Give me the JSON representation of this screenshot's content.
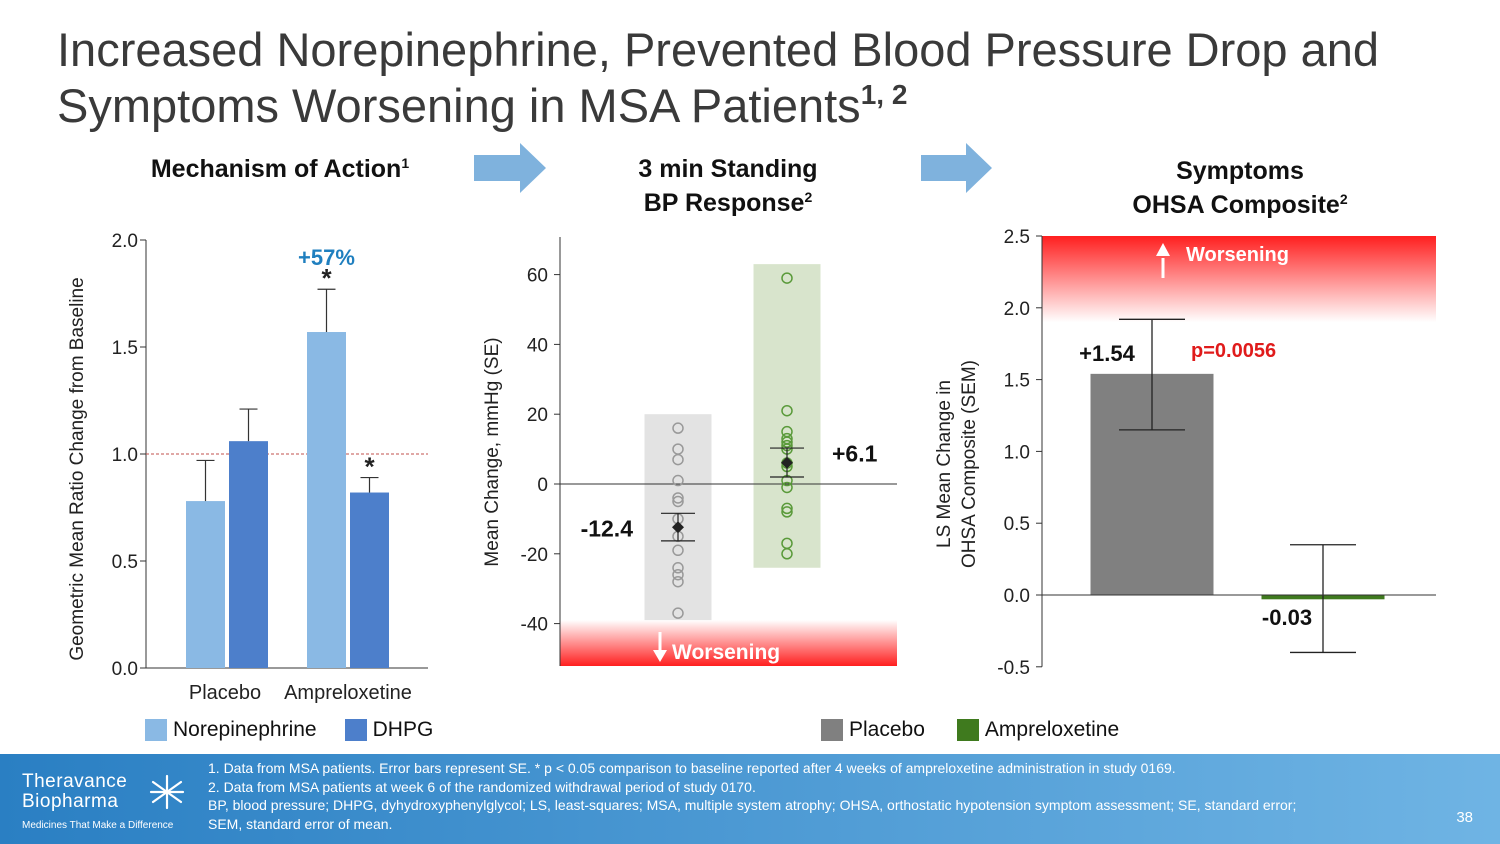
{
  "title_main": "Increased Norepinephrine, Prevented Blood Pressure Drop and Symptoms Worsening in MSA Patients",
  "title_sup": "1, 2",
  "panels": {
    "p1": {
      "title": "Mechanism of Action",
      "sup": "1"
    },
    "p2": {
      "title_l1": "3 min Standing",
      "title_l2": "BP Response",
      "sup": "2"
    },
    "p3": {
      "title_l1": "Symptoms",
      "title_l2": "OHSA Composite",
      "sup": "2"
    }
  },
  "colors": {
    "norepinephrine": "#8ab9e4",
    "dhpg": "#4d7fcb",
    "placebo": "#808080",
    "ampreloxetine": "#3f7a1e",
    "accent_blue": "#1f7fbf",
    "pvalue_red": "#e01b1b",
    "worsening_red": "#ff3030"
  },
  "chart_data": [
    {
      "type": "bar",
      "ylabel": "Geometric Mean Ratio Change from Baseline",
      "ylim": [
        0,
        2.0
      ],
      "yticks": [
        "0.0",
        "0.5",
        "1.0",
        "1.5",
        "2.0"
      ],
      "categories": [
        "Placebo",
        "Ampreloxetine"
      ],
      "series": [
        {
          "name": "Norepinephrine",
          "values": [
            0.78,
            1.57
          ],
          "error_upper": [
            0.97,
            1.77
          ]
        },
        {
          "name": "DHPG",
          "values": [
            1.06,
            0.82
          ],
          "error_upper": [
            1.21,
            0.89
          ]
        }
      ],
      "reference_line": 1.0,
      "annotations": {
        "change": "+57%",
        "sig_marker": "*"
      }
    },
    {
      "type": "scatter",
      "ylabel": "Mean Change, mmHg (SE)",
      "ylim": [
        -52,
        70
      ],
      "yticks": [
        "-40",
        "-20",
        "0",
        "20",
        "40",
        "60"
      ],
      "groups": [
        {
          "name": "Placebo",
          "mean": -12.4,
          "mean_label": "-12.4",
          "se_low": -16.3,
          "se_high": -8.4,
          "range": [
            -39,
            20
          ],
          "points": [
            16,
            10,
            7,
            1,
            -4,
            -5,
            -10,
            -15,
            -19,
            -24,
            -26,
            -28,
            -37
          ]
        },
        {
          "name": "Ampreloxetine",
          "mean": 6.1,
          "mean_label": "+6.1",
          "se_low": 2,
          "se_high": 10.3,
          "range": [
            -24,
            63
          ],
          "points": [
            59,
            21,
            15,
            13,
            12,
            11,
            10,
            6,
            5,
            1,
            -1,
            -7,
            -8,
            -17,
            -20
          ]
        }
      ],
      "worsening_label": "Worsening"
    },
    {
      "type": "bar",
      "ylabel": "LS Mean Change in OHSA Composite (SEM)",
      "ylim": [
        -0.5,
        2.5
      ],
      "yticks": [
        "-0.5",
        "0.0",
        "0.5",
        "1.0",
        "1.5",
        "2.0",
        "2.5"
      ],
      "categories": [
        "Placebo",
        "Ampreloxetine"
      ],
      "values": [
        1.54,
        -0.03
      ],
      "value_labels": [
        "+1.54",
        "-0.03"
      ],
      "error_low": [
        1.15,
        -0.4
      ],
      "error_high": [
        1.92,
        0.35
      ],
      "pvalue": "p=0.0056",
      "worsening_label": "Worsening"
    }
  ],
  "legend_left": [
    "Norepinephrine",
    "DHPG"
  ],
  "legend_right": [
    "Placebo",
    "Ampreloxetine"
  ],
  "footer": {
    "logo_line1": "Theravance",
    "logo_line2": "Biopharma",
    "tagline": "Medicines That Make a Difference",
    "note1": "1. Data from MSA patients. Error bars represent SE. * p < 0.05 comparison to baseline reported after 4 weeks of ampreloxetine administration in study 0169.",
    "note2": "2. Data from MSA patients at week 6 of the randomized withdrawal period of study 0170.",
    "note3": "BP, blood pressure; DHPG, dyhydroxyphenylglycol; LS, least-squares; MSA, multiple system atrophy; OHSA, orthostatic hypotension symptom assessment; SE, standard error;",
    "note4": "SEM, standard error of mean.",
    "page_number": "38"
  }
}
